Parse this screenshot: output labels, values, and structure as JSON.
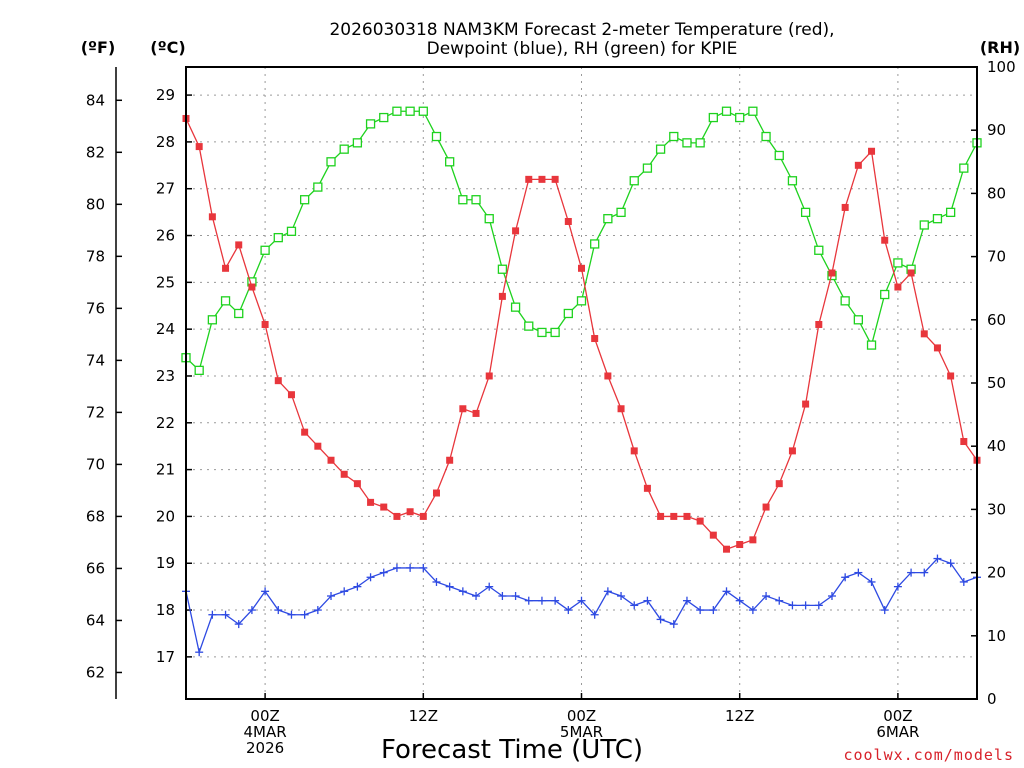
{
  "chart_data": {
    "type": "line",
    "title": "2026030318 NAM3KM Forecast 2-meter Temperature (red),",
    "title_line2": "Dewpoint (blue), RH (green) for KPIE",
    "xlabel": "Forecast Time (UTC)",
    "credit": "coolwx.com/models",
    "unit_labels": {
      "fahrenheit": "(ºF)",
      "celsius": "(ºC)",
      "rh": "(RH)"
    },
    "x_hours": [
      0,
      1,
      2,
      3,
      4,
      5,
      6,
      7,
      8,
      9,
      10,
      11,
      12,
      13,
      14,
      15,
      16,
      17,
      18,
      19,
      20,
      21,
      22,
      23,
      24,
      25,
      26,
      27,
      28,
      29,
      30,
      31,
      32,
      33,
      34,
      35,
      36,
      37,
      38,
      39,
      40,
      41,
      42,
      43,
      44,
      45,
      46,
      47,
      48,
      49,
      50,
      51,
      52,
      53,
      54,
      55,
      56,
      57,
      58,
      59,
      60
    ],
    "x_ticks": [
      {
        "hour": 6,
        "lines": [
          "00Z",
          "4MAR",
          "2026"
        ]
      },
      {
        "hour": 18,
        "lines": [
          "12Z"
        ]
      },
      {
        "hour": 30,
        "lines": [
          "00Z",
          "5MAR"
        ]
      },
      {
        "hour": 42,
        "lines": [
          "12Z"
        ]
      },
      {
        "hour": 54,
        "lines": [
          "00Z",
          "6MAR"
        ]
      }
    ],
    "xlim": [
      0,
      60
    ],
    "celsius_ylim": [
      16.1,
      29.6
    ],
    "celsius_ticks": [
      17,
      18,
      19,
      20,
      21,
      22,
      23,
      24,
      25,
      26,
      27,
      28,
      29
    ],
    "fahrenheit_ticks": [
      62,
      64,
      66,
      68,
      70,
      72,
      74,
      76,
      78,
      80,
      82,
      84
    ],
    "rh_ylim": [
      0,
      100
    ],
    "rh_ticks": [
      0,
      10,
      20,
      30,
      40,
      50,
      60,
      70,
      80,
      90,
      100
    ],
    "series": [
      {
        "name": "Temperature",
        "color": "#e8363c",
        "marker": "filled-square",
        "axis": "celsius",
        "values": [
          28.5,
          27.9,
          26.4,
          25.3,
          25.8,
          24.9,
          24.1,
          22.9,
          22.6,
          21.8,
          21.5,
          21.2,
          20.9,
          20.7,
          20.3,
          20.2,
          20.0,
          20.1,
          20.0,
          20.5,
          21.2,
          22.3,
          22.2,
          23.0,
          24.7,
          26.1,
          27.2,
          27.2,
          27.2,
          26.3,
          25.3,
          23.8,
          23.0,
          22.3,
          21.4,
          20.6,
          20.0,
          20.0,
          20.0,
          19.9,
          19.6,
          19.3,
          19.4,
          19.5,
          20.2,
          20.7,
          21.4,
          22.4,
          24.1,
          25.2,
          26.6,
          27.5,
          27.8,
          25.9,
          24.9,
          25.2,
          23.9,
          23.6,
          23.0,
          21.6,
          21.2
        ]
      },
      {
        "name": "Dewpoint",
        "color": "#2e4ae2",
        "marker": "plus",
        "axis": "celsius",
        "values": [
          18.4,
          17.1,
          17.9,
          17.9,
          17.7,
          18.0,
          18.4,
          18.0,
          17.9,
          17.9,
          18.0,
          18.3,
          18.4,
          18.5,
          18.7,
          18.8,
          18.9,
          18.9,
          18.9,
          18.6,
          18.5,
          18.4,
          18.3,
          18.5,
          18.3,
          18.3,
          18.2,
          18.2,
          18.2,
          18.0,
          18.2,
          17.9,
          18.4,
          18.3,
          18.1,
          18.2,
          17.8,
          17.7,
          18.2,
          18.0,
          18.0,
          18.4,
          18.2,
          18.0,
          18.3,
          18.2,
          18.1,
          18.1,
          18.1,
          18.3,
          18.7,
          18.8,
          18.6,
          18.0,
          18.5,
          18.8,
          18.8,
          19.1,
          19.0,
          18.6,
          18.7
        ]
      },
      {
        "name": "RH",
        "color": "#1ed21e",
        "marker": "open-square",
        "axis": "rh",
        "values": [
          54,
          52,
          60,
          63,
          61,
          66,
          71,
          73,
          74,
          79,
          81,
          85,
          87,
          88,
          91,
          92,
          93,
          93,
          93,
          89,
          85,
          79,
          79,
          76,
          68,
          62,
          59,
          58,
          58,
          61,
          63,
          72,
          76,
          77,
          82,
          84,
          87,
          89,
          88,
          88,
          92,
          93,
          92,
          93,
          89,
          86,
          82,
          77,
          71,
          67,
          63,
          60,
          56,
          64,
          69,
          68,
          75,
          76,
          77,
          84,
          88
        ]
      }
    ]
  }
}
